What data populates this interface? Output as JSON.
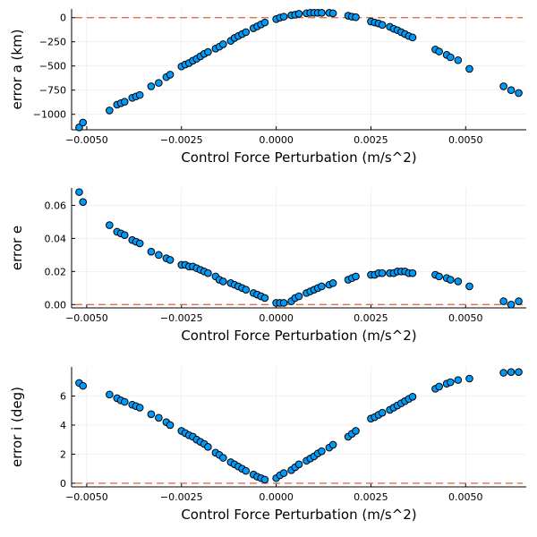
{
  "colors": {
    "marker": "#009AFA",
    "reference_line": "#E26F46"
  },
  "chart_data": [
    {
      "type": "scatter",
      "xlabel": "Control Force Perturbation (m/s^2)",
      "ylabel": "error a (km)",
      "xlim": [
        -0.0054,
        0.0066
      ],
      "ylim": [
        -1160,
        90
      ],
      "xticks": [
        -0.005,
        -0.0025,
        0.0,
        0.0025,
        0.005
      ],
      "xtick_labels": [
        "−0.0050",
        "−0.0025",
        "0.0000",
        "0.0025",
        "0.0050"
      ],
      "yticks": [
        -1000,
        -750,
        -500,
        -250,
        0
      ],
      "ytick_labels": [
        "−1000",
        "−750",
        "−500",
        "−250",
        "0"
      ],
      "grid": true,
      "reference_line_y": 0,
      "x": [
        -0.0052,
        -0.0051,
        -0.0044,
        -0.0042,
        -0.0041,
        -0.004,
        -0.0038,
        -0.0037,
        -0.0036,
        -0.0033,
        -0.0031,
        -0.0029,
        -0.0028,
        -0.0025,
        -0.0024,
        -0.0023,
        -0.0022,
        -0.0021,
        -0.002,
        -0.0019,
        -0.0018,
        -0.0016,
        -0.0015,
        -0.0014,
        -0.0012,
        -0.0011,
        -0.001,
        -0.0009,
        -0.0008,
        -0.0006,
        -0.0005,
        -0.0004,
        -0.0003,
        0.0,
        0.0001,
        0.0002,
        0.0004,
        0.0005,
        0.0006,
        0.0008,
        0.0009,
        0.001,
        0.0011,
        0.0012,
        0.0014,
        0.0015,
        0.0019,
        0.002,
        0.0021,
        0.0025,
        0.0026,
        0.0027,
        0.0028,
        0.003,
        0.0031,
        0.0032,
        0.0033,
        0.0034,
        0.0035,
        0.0036,
        0.0042,
        0.0043,
        0.0045,
        0.0046,
        0.0048,
        0.0051,
        0.006,
        0.0062,
        0.0064
      ],
      "y": [
        -1135,
        -1085,
        -960,
        -900,
        -885,
        -870,
        -830,
        -815,
        -800,
        -710,
        -675,
        -615,
        -590,
        -505,
        -485,
        -470,
        -445,
        -425,
        -400,
        -375,
        -355,
        -320,
        -300,
        -275,
        -240,
        -210,
        -190,
        -170,
        -150,
        -110,
        -90,
        -70,
        -50,
        -15,
        0,
        10,
        25,
        30,
        40,
        45,
        50,
        50,
        50,
        50,
        50,
        45,
        20,
        10,
        5,
        -40,
        -50,
        -60,
        -75,
        -95,
        -115,
        -130,
        -150,
        -170,
        -190,
        -205,
        -330,
        -350,
        -385,
        -410,
        -440,
        -530,
        -710,
        -750,
        -780
      ]
    },
    {
      "type": "scatter",
      "xlabel": "Control Force Perturbation (m/s^2)",
      "ylabel": "error e",
      "xlim": [
        -0.0054,
        0.0066
      ],
      "ylim": [
        -0.002,
        0.0705
      ],
      "xticks": [
        -0.005,
        -0.0025,
        0.0,
        0.0025,
        0.005
      ],
      "xtick_labels": [
        "−0.0050",
        "−0.0025",
        "0.0000",
        "0.0025",
        "0.0050"
      ],
      "yticks": [
        0.0,
        0.02,
        0.04,
        0.06
      ],
      "ytick_labels": [
        "0.00",
        "0.02",
        "0.04",
        "0.06"
      ],
      "grid": true,
      "reference_line_y": 0,
      "x": [
        -0.0052,
        -0.0051,
        -0.0044,
        -0.0042,
        -0.0041,
        -0.004,
        -0.0038,
        -0.0037,
        -0.0036,
        -0.0033,
        -0.0031,
        -0.0029,
        -0.0028,
        -0.0025,
        -0.0024,
        -0.0023,
        -0.0022,
        -0.0021,
        -0.002,
        -0.0019,
        -0.0018,
        -0.0016,
        -0.0015,
        -0.0014,
        -0.0012,
        -0.0011,
        -0.001,
        -0.0009,
        -0.0008,
        -0.0006,
        -0.0005,
        -0.0004,
        -0.0003,
        0.0,
        0.0001,
        0.0002,
        0.0004,
        0.0005,
        0.0006,
        0.0008,
        0.0009,
        0.001,
        0.0011,
        0.0012,
        0.0014,
        0.0015,
        0.0019,
        0.002,
        0.0021,
        0.0025,
        0.0026,
        0.0027,
        0.0028,
        0.003,
        0.0031,
        0.0032,
        0.0033,
        0.0034,
        0.0035,
        0.0036,
        0.0042,
        0.0043,
        0.0045,
        0.0046,
        0.0048,
        0.0051,
        0.006,
        0.0062,
        0.0064
      ],
      "y": [
        0.068,
        0.062,
        0.048,
        0.044,
        0.043,
        0.042,
        0.039,
        0.038,
        0.037,
        0.032,
        0.03,
        0.028,
        0.027,
        0.024,
        0.024,
        0.023,
        0.023,
        0.022,
        0.021,
        0.02,
        0.019,
        0.017,
        0.015,
        0.014,
        0.013,
        0.012,
        0.011,
        0.01,
        0.009,
        0.007,
        0.006,
        0.005,
        0.004,
        0.001,
        0.001,
        0.001,
        0.002,
        0.004,
        0.005,
        0.007,
        0.008,
        0.009,
        0.01,
        0.011,
        0.012,
        0.013,
        0.015,
        0.016,
        0.017,
        0.018,
        0.018,
        0.019,
        0.019,
        0.019,
        0.019,
        0.02,
        0.02,
        0.02,
        0.019,
        0.019,
        0.018,
        0.017,
        0.016,
        0.015,
        0.014,
        0.011,
        0.002,
        0.0,
        0.002
      ]
    },
    {
      "type": "scatter",
      "xlabel": "Control Force Perturbation (m/s^2)",
      "ylabel": "error i (deg)",
      "xlim": [
        -0.0054,
        0.0066
      ],
      "ylim": [
        -0.25,
        8.0
      ],
      "xticks": [
        -0.005,
        -0.0025,
        0.0,
        0.0025,
        0.005
      ],
      "xtick_labels": [
        "−0.0050",
        "−0.0025",
        "0.0000",
        "0.0025",
        "0.0050"
      ],
      "yticks": [
        0,
        2,
        4,
        6
      ],
      "ytick_labels": [
        "0",
        "2",
        "4",
        "6"
      ],
      "grid": true,
      "reference_line_y": 0,
      "x": [
        -0.0052,
        -0.0051,
        -0.0044,
        -0.0042,
        -0.0041,
        -0.004,
        -0.0038,
        -0.0037,
        -0.0036,
        -0.0033,
        -0.0031,
        -0.0029,
        -0.0028,
        -0.0025,
        -0.0024,
        -0.0023,
        -0.0022,
        -0.0021,
        -0.002,
        -0.0019,
        -0.0018,
        -0.0016,
        -0.0015,
        -0.0014,
        -0.0012,
        -0.0011,
        -0.001,
        -0.0009,
        -0.0008,
        -0.0006,
        -0.0005,
        -0.0004,
        -0.0003,
        0.0,
        0.0001,
        0.0002,
        0.0004,
        0.0005,
        0.0006,
        0.0008,
        0.0009,
        0.001,
        0.0011,
        0.0012,
        0.0014,
        0.0015,
        0.0019,
        0.002,
        0.0021,
        0.0025,
        0.0026,
        0.0027,
        0.0028,
        0.003,
        0.0031,
        0.0032,
        0.0033,
        0.0034,
        0.0035,
        0.0036,
        0.0042,
        0.0043,
        0.0045,
        0.0046,
        0.0048,
        0.0051,
        0.006,
        0.0062,
        0.0064
      ],
      "y": [
        6.9,
        6.7,
        6.1,
        5.85,
        5.7,
        5.6,
        5.4,
        5.3,
        5.2,
        4.75,
        4.5,
        4.2,
        4.0,
        3.6,
        3.45,
        3.3,
        3.2,
        3.0,
        2.85,
        2.7,
        2.5,
        2.1,
        1.95,
        1.75,
        1.45,
        1.3,
        1.15,
        1.0,
        0.85,
        0.6,
        0.45,
        0.35,
        0.25,
        0.35,
        0.55,
        0.7,
        0.9,
        1.1,
        1.3,
        1.55,
        1.7,
        1.85,
        2.05,
        2.2,
        2.45,
        2.65,
        3.2,
        3.4,
        3.6,
        4.45,
        4.55,
        4.7,
        4.85,
        5.05,
        5.2,
        5.35,
        5.5,
        5.65,
        5.8,
        5.95,
        6.5,
        6.65,
        6.85,
        6.95,
        7.1,
        7.2,
        7.6,
        7.65,
        7.65
      ]
    }
  ]
}
